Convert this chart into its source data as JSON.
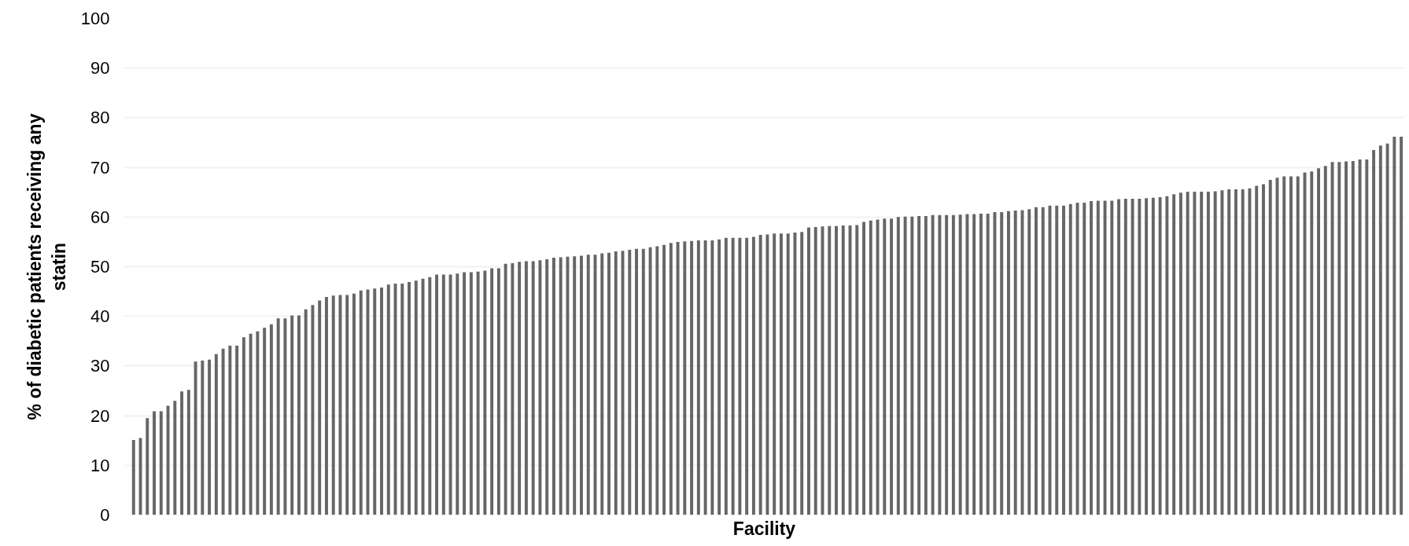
{
  "chart_data": {
    "type": "bar",
    "xlabel": "Facility",
    "ylabel": "% of diabetic patients receiving any statin",
    "categories": [
      null,
      null,
      null,
      null,
      null,
      null,
      null,
      null,
      null,
      null,
      null,
      null,
      null,
      null,
      null,
      null,
      null,
      null,
      null,
      null,
      null,
      null,
      null,
      null,
      null,
      null,
      null,
      null,
      null,
      null,
      null,
      null,
      null,
      null,
      null,
      null,
      null,
      null,
      null,
      null,
      null,
      null,
      null,
      null,
      null,
      null,
      null,
      null,
      null,
      null,
      null,
      null,
      null,
      null,
      null,
      null,
      null,
      null,
      null,
      null,
      null,
      null,
      null,
      null,
      null,
      null,
      null,
      null,
      null,
      null,
      null,
      null,
      null,
      null,
      null,
      null,
      null,
      null,
      null,
      null,
      null,
      null,
      null,
      null,
      null,
      null,
      null,
      null,
      null,
      null,
      null,
      null,
      null,
      null,
      null,
      null,
      null,
      null,
      null,
      null,
      null,
      null,
      null,
      null,
      null,
      null,
      null,
      null,
      null,
      null,
      null,
      null,
      null,
      null,
      null,
      null,
      null,
      null,
      null,
      null,
      null,
      null,
      null,
      null,
      null,
      null,
      null,
      null,
      null,
      null,
      null,
      null,
      null,
      null,
      null,
      null,
      null,
      null,
      null,
      null,
      null,
      null,
      null,
      null,
      null,
      null,
      null,
      null,
      null,
      null,
      null,
      null,
      null,
      null,
      null,
      null,
      null,
      null,
      null,
      null,
      null,
      null,
      null,
      null,
      null,
      null,
      null,
      null,
      null,
      null,
      null,
      null,
      null,
      null,
      null,
      null,
      null,
      null,
      null,
      null,
      null,
      null,
      null,
      null,
      null
    ],
    "values": [
      15.1,
      15.5,
      19.5,
      20.9,
      20.9,
      22.0,
      23.0,
      24.9,
      25.2,
      30.9,
      31.1,
      31.3,
      32.4,
      33.5,
      34.1,
      34.1,
      35.8,
      36.5,
      37.0,
      37.7,
      38.4,
      39.6,
      39.6,
      40.2,
      40.2,
      41.4,
      42.3,
      43.2,
      43.9,
      44.2,
      44.3,
      44.3,
      44.6,
      45.2,
      45.4,
      45.6,
      45.8,
      46.4,
      46.6,
      46.6,
      46.9,
      47.2,
      47.6,
      47.9,
      48.4,
      48.4,
      48.4,
      48.6,
      48.9,
      48.9,
      49.0,
      49.2,
      49.7,
      49.7,
      50.6,
      50.7,
      51.0,
      51.1,
      51.1,
      51.3,
      51.5,
      51.8,
      51.9,
      52.0,
      52.1,
      52.2,
      52.4,
      52.4,
      52.7,
      52.8,
      53.1,
      53.2,
      53.4,
      53.6,
      53.6,
      53.9,
      54.1,
      54.4,
      54.8,
      55.0,
      55.1,
      55.2,
      55.3,
      55.3,
      55.3,
      55.5,
      55.8,
      55.8,
      55.8,
      55.8,
      56.0,
      56.4,
      56.5,
      56.7,
      56.7,
      56.7,
      56.9,
      57.0,
      57.9,
      58.0,
      58.1,
      58.2,
      58.2,
      58.3,
      58.3,
      58.4,
      59.0,
      59.3,
      59.5,
      59.7,
      59.7,
      60.0,
      60.1,
      60.1,
      60.2,
      60.2,
      60.4,
      60.4,
      60.4,
      60.4,
      60.5,
      60.6,
      60.6,
      60.7,
      60.7,
      61.0,
      61.0,
      61.2,
      61.3,
      61.4,
      61.6,
      62.0,
      62.0,
      62.3,
      62.3,
      62.3,
      62.6,
      62.9,
      62.9,
      63.2,
      63.3,
      63.3,
      63.3,
      63.6,
      63.7,
      63.7,
      63.7,
      63.8,
      63.9,
      64.0,
      64.2,
      64.6,
      64.9,
      65.1,
      65.1,
      65.1,
      65.1,
      65.2,
      65.4,
      65.6,
      65.6,
      65.6,
      65.8,
      66.3,
      66.6,
      67.5,
      67.9,
      68.2,
      68.2,
      68.2,
      69.0,
      69.2,
      69.8,
      70.3,
      71.1,
      71.1,
      71.2,
      71.3,
      71.6,
      71.6,
      73.5,
      74.4,
      74.8,
      76.2,
      76.2
    ],
    "color": "#666666",
    "ylim": [
      0,
      100
    ],
    "yticks": [
      0,
      10,
      20,
      30,
      40,
      50,
      60,
      70,
      80,
      90,
      100
    ],
    "grid": "y"
  }
}
